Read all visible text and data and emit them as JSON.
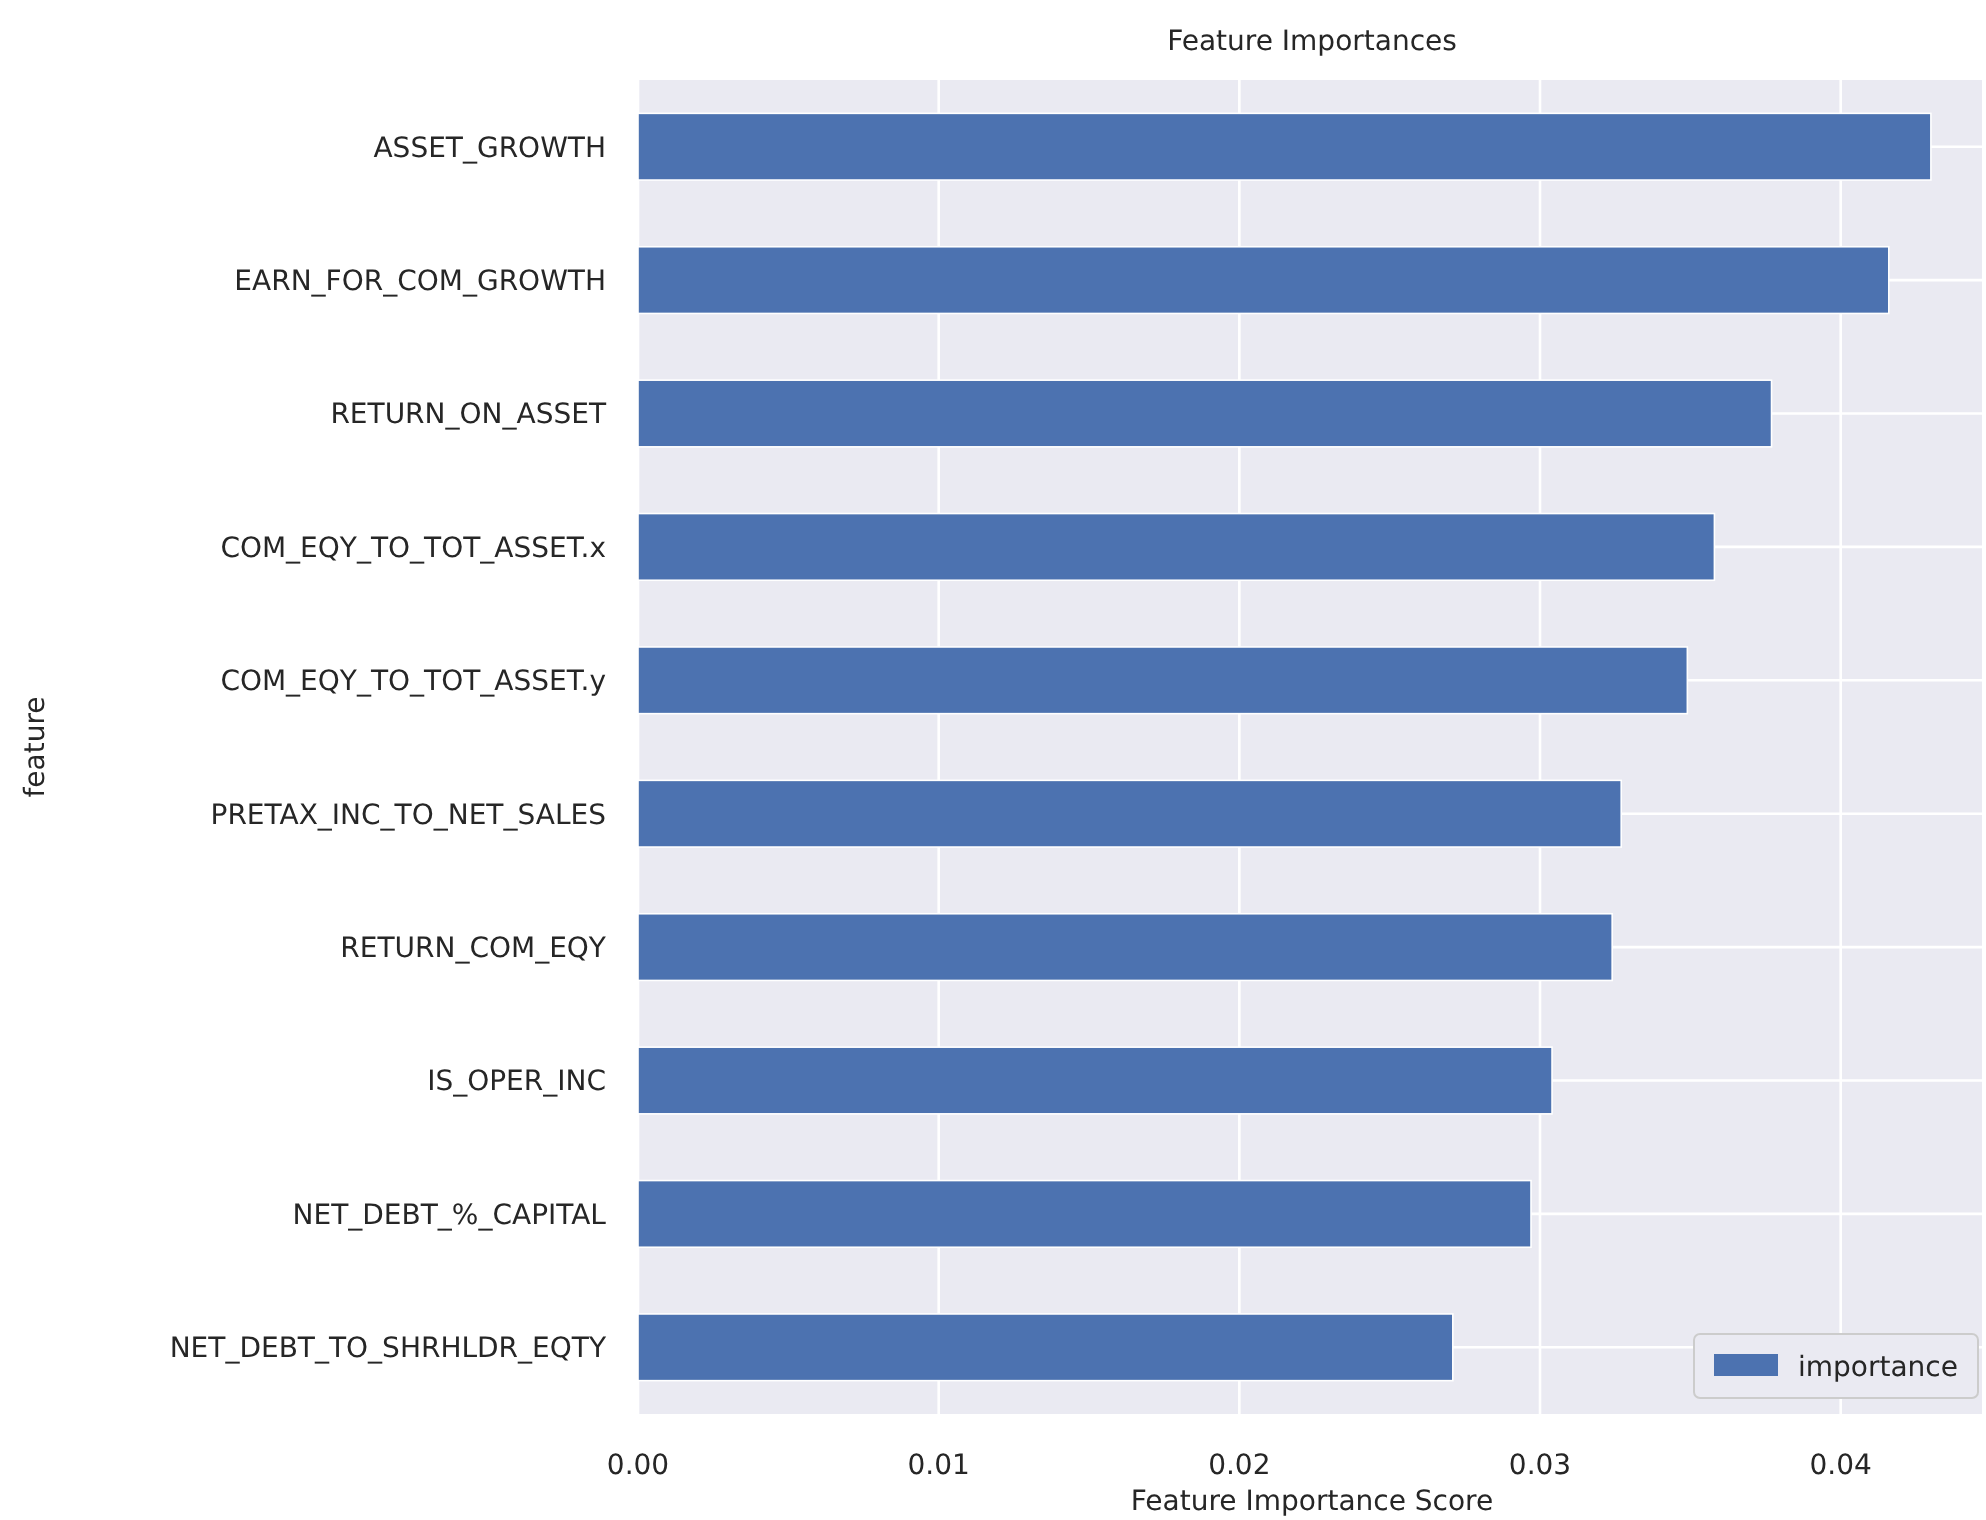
{
  "chart_data": {
    "type": "bar",
    "orientation": "horizontal",
    "title": "Feature Importances",
    "xlabel": "Feature Importance Score",
    "ylabel": "feature",
    "categories": [
      "ASSET_GROWTH",
      "EARN_FOR_COM_GROWTH",
      "RETURN_ON_ASSET",
      "COM_EQY_TO_TOT_ASSET.x",
      "COM_EQY_TO_TOT_ASSET.y",
      "PRETAX_INC_TO_NET_SALES",
      "RETURN_COM_EQY",
      "IS_OPER_INC",
      "NET_DEBT_%_CAPITAL",
      "NET_DEBT_TO_SHRHLDR_EQTY"
    ],
    "series": [
      {
        "name": "importance",
        "color": "#4c72b0",
        "values": [
          0.043,
          0.0416,
          0.0377,
          0.0358,
          0.0349,
          0.0327,
          0.0324,
          0.0304,
          0.0297,
          0.0271
        ]
      }
    ],
    "xlim": [
      0,
      0.0447
    ],
    "xticks": [
      {
        "value": 0,
        "label": "0.00"
      },
      0.01,
      0.02,
      0.03,
      0.04
    ],
    "grid": true,
    "legend": "bottom right"
  }
}
